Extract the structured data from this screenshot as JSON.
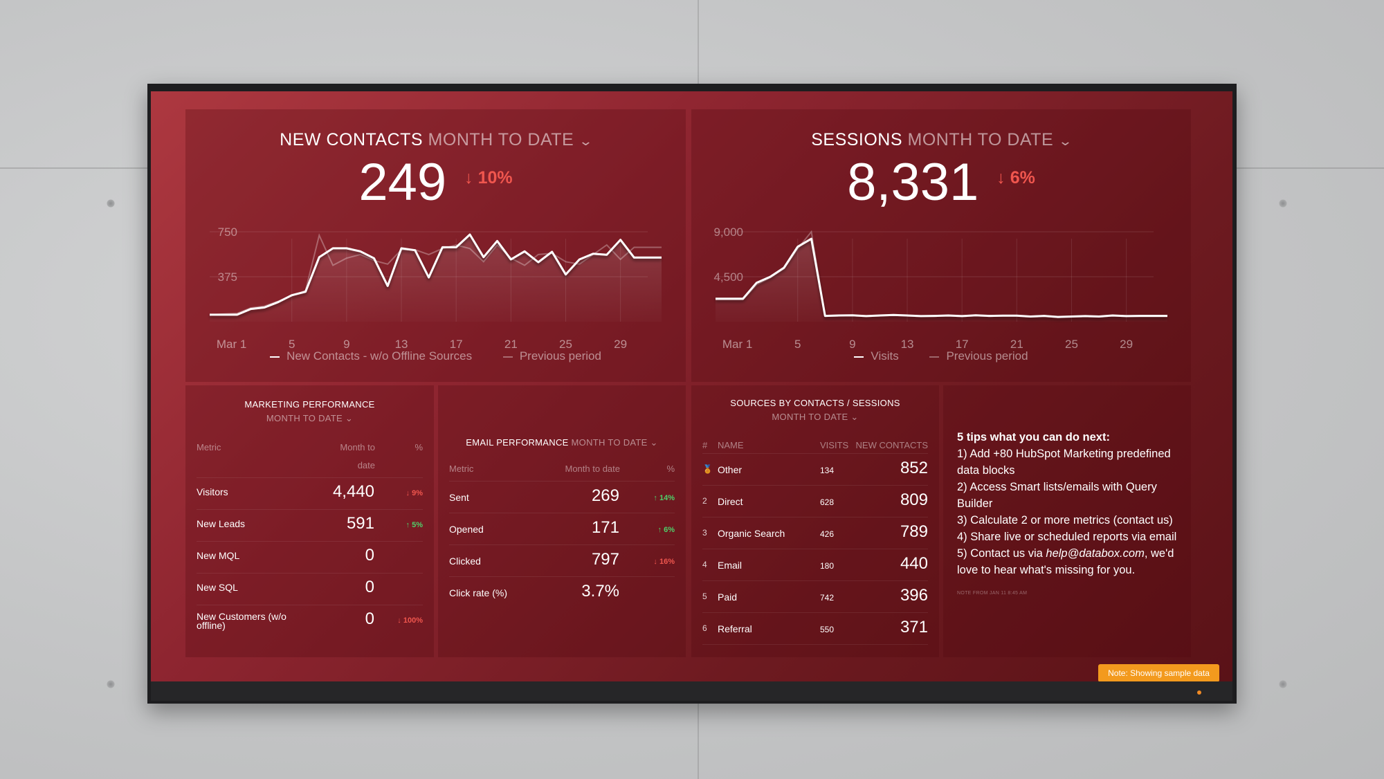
{
  "new_contacts": {
    "title": "NEW CONTACTS",
    "period": "MONTH TO DATE",
    "value": "249",
    "change": "↓ 10%",
    "legend": [
      "New Contacts - w/o Offline Sources",
      "Previous period"
    ]
  },
  "sessions": {
    "title": "SESSIONS",
    "period": "MONTH TO DATE",
    "value": "8,331",
    "change": "↓ 6%",
    "legend": [
      "Visits",
      "Previous period"
    ]
  },
  "marketing": {
    "title": "MARKETING PERFORMANCE",
    "period": "MONTH TO DATE",
    "headers": [
      "Metric",
      "Month to",
      "date",
      "%"
    ],
    "rows": [
      {
        "label": "Visitors",
        "value": "4,440",
        "change": "↓ 9%",
        "dir": "down"
      },
      {
        "label": "New Leads",
        "value": "591",
        "change": "↑ 5%",
        "dir": "up"
      },
      {
        "label": "New MQL",
        "value": "0",
        "change": "",
        "dir": ""
      },
      {
        "label": "New SQL",
        "value": "0",
        "change": "",
        "dir": ""
      },
      {
        "label": "New Customers (w/o offline)",
        "value": "0",
        "change": "↓ 100%",
        "dir": "down"
      }
    ]
  },
  "email": {
    "title": "EMAIL PERFORMANCE",
    "period": "MONTH TO DATE",
    "headers": [
      "Metric",
      "Month to date",
      "%"
    ],
    "rows": [
      {
        "label": "Sent",
        "value": "269",
        "change": "↑ 14%",
        "dir": "up"
      },
      {
        "label": "Opened",
        "value": "171",
        "change": "↑ 6%",
        "dir": "up"
      },
      {
        "label": "Clicked",
        "value": "797",
        "change": "↓ 16%",
        "dir": "down"
      },
      {
        "label": "Click rate (%)",
        "value": "3.7%",
        "change": "",
        "dir": ""
      }
    ]
  },
  "sources": {
    "title": "SOURCES BY CONTACTS / SESSIONS",
    "period": "MONTH TO DATE",
    "headers": [
      "#",
      "NAME",
      "VISITS",
      "NEW CONTACTS"
    ],
    "rows": [
      {
        "rank": "🏅",
        "name": "Other",
        "visits": "134",
        "contacts": "852"
      },
      {
        "rank": "2",
        "name": "Direct",
        "visits": "628",
        "contacts": "809"
      },
      {
        "rank": "3",
        "name": "Organic Search",
        "visits": "426",
        "contacts": "789"
      },
      {
        "rank": "4",
        "name": "Email",
        "visits": "180",
        "contacts": "440"
      },
      {
        "rank": "5",
        "name": "Paid",
        "visits": "742",
        "contacts": "396"
      },
      {
        "rank": "6",
        "name": "Referral",
        "visits": "550",
        "contacts": "371"
      }
    ]
  },
  "tips": {
    "heading": "5 tips what you can do next:",
    "items": [
      "1) Add +80 HubSpot Marketing predefined data blocks",
      "2) Access Smart lists/emails with Query Builder",
      "3) Calculate 2 or more metrics (contact us)",
      "4) Share live or scheduled reports via email"
    ],
    "item5_prefix": "5) Contact us via ",
    "item5_email": "help@databox.com",
    "item5_suffix": ", we'd love to hear what's missing for you.",
    "note": "NOTE FROM JAN 11 8:45 AM"
  },
  "badge": "Note: Showing sample data",
  "colors": {
    "up": "#4fd06a",
    "down": "#f0564e",
    "badge": "#f39a1e",
    "line": "#ffffff"
  },
  "chart_data": [
    {
      "type": "line",
      "title": "New Contacts",
      "x": [
        -1,
        1,
        2,
        3,
        4,
        5,
        6,
        7,
        8,
        9,
        10,
        11,
        12,
        13,
        14,
        15,
        16,
        17,
        18,
        19,
        20,
        21,
        22,
        23,
        24,
        25,
        26,
        27,
        28,
        29,
        30,
        32
      ],
      "xticks": [
        1,
        5,
        9,
        13,
        17,
        21,
        25,
        29
      ],
      "xtick_labels": [
        "Mar 1",
        "5",
        "9",
        "13",
        "17",
        "21",
        "25",
        "29"
      ],
      "yticks": [
        375,
        750
      ],
      "ytick_labels": [
        "375",
        "750"
      ],
      "ylim": [
        0,
        750
      ],
      "series": [
        {
          "name": "New Contacts - w/o Offline Sources",
          "values": [
            58,
            58,
            106,
            119,
            163,
            221,
            250,
            538,
            612,
            612,
            587,
            529,
            298,
            612,
            596,
            369,
            621,
            621,
            727,
            538,
            673,
            519,
            587,
            496,
            583,
            394,
            519,
            567,
            558,
            683,
            535,
            535
          ]
        },
        {
          "name": "Previous period",
          "values": [
            58,
            70,
            115,
            130,
            170,
            215,
            260,
            720,
            470,
            530,
            560,
            510,
            480,
            600,
            600,
            560,
            610,
            640,
            610,
            500,
            640,
            530,
            470,
            560,
            570,
            500,
            480,
            560,
            640,
            520,
            620,
            620
          ]
        }
      ],
      "legend": "bottom"
    },
    {
      "type": "line",
      "title": "Sessions",
      "x": [
        -1,
        1,
        2,
        3,
        4,
        5,
        6,
        7,
        8,
        9,
        10,
        11,
        12,
        13,
        14,
        15,
        16,
        17,
        18,
        19,
        20,
        21,
        22,
        23,
        24,
        25,
        26,
        27,
        28,
        29,
        30,
        32
      ],
      "xticks": [
        1,
        5,
        9,
        13,
        17,
        21,
        25,
        29
      ],
      "xtick_labels": [
        "Mar 1",
        "5",
        "9",
        "13",
        "17",
        "21",
        "25",
        "29"
      ],
      "yticks": [
        4500,
        9000
      ],
      "ytick_labels": [
        "4,500",
        "9,000"
      ],
      "ylim": [
        0,
        9000
      ],
      "series": [
        {
          "name": "Visits",
          "values": [
            2300,
            2300,
            3900,
            4500,
            5400,
            7500,
            8300,
            580,
            620,
            640,
            560,
            620,
            680,
            620,
            560,
            580,
            620,
            560,
            640,
            580,
            600,
            600,
            520,
            580,
            480,
            520,
            560,
            520,
            620,
            560,
            580,
            580
          ]
        },
        {
          "name": "Previous period",
          "values": [
            2200,
            2200,
            3700,
            4400,
            5300,
            7300,
            9000,
            600,
            640,
            620,
            580,
            640,
            660,
            600,
            580,
            600,
            600,
            580,
            620,
            600,
            620,
            580,
            540,
            600,
            500,
            540,
            580,
            540,
            600,
            580,
            600,
            600
          ]
        }
      ],
      "legend": "bottom"
    }
  ]
}
